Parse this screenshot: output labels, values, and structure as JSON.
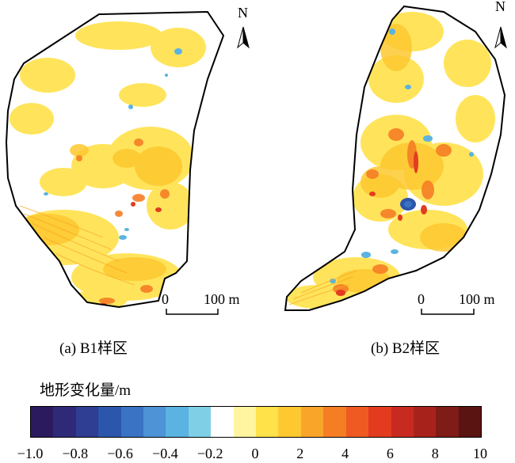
{
  "panels": [
    {
      "id": "B1",
      "caption": "(a) B1样区",
      "north_label": "N",
      "scale": {
        "start": "0",
        "end": "100 m"
      }
    },
    {
      "id": "B2",
      "caption": "(b) B2样区",
      "north_label": "N",
      "scale": {
        "start": "0",
        "end": "100 m"
      }
    }
  ],
  "legend": {
    "title": "地形变化量/m",
    "ticks": [
      "−1.0",
      "−0.8",
      "−0.6",
      "−0.4",
      "−0.2",
      "0",
      "2",
      "4",
      "6",
      "8",
      "10"
    ],
    "colors": [
      "#2b1a5e",
      "#2f2a78",
      "#2f3d92",
      "#2c56ac",
      "#3a73c4",
      "#4d93d6",
      "#5ab3e0",
      "#7fd0e6",
      "#ffffff",
      "#fff4a0",
      "#ffe24a",
      "#fdc830",
      "#f9a52a",
      "#f57e25",
      "#ef5a22",
      "#e33b20",
      "#c92a1f",
      "#a8221c",
      "#7f1c17",
      "#5a1412"
    ]
  }
}
